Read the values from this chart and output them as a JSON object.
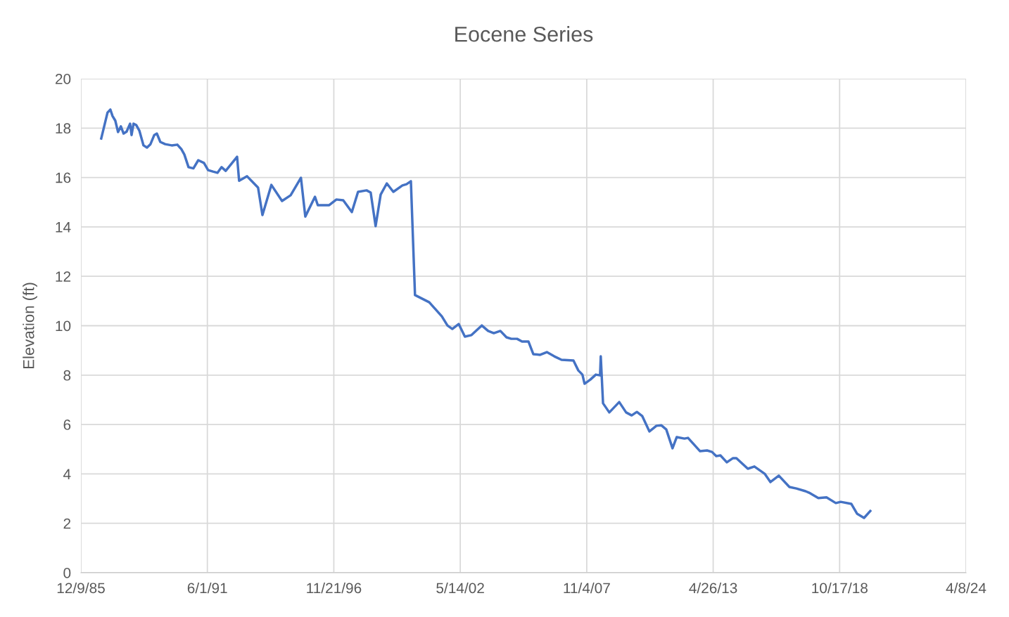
{
  "chart_data": {
    "type": "line",
    "title": "Eocene Series",
    "ylabel": "Elevation (ft)",
    "xlim": [
      "1985-12-09",
      "2024-04-08"
    ],
    "xticks": [
      {
        "value": "1985-12-09",
        "label": "12/9/85"
      },
      {
        "value": "1991-06-01",
        "label": "6/1/91"
      },
      {
        "value": "1996-11-21",
        "label": "11/21/96"
      },
      {
        "value": "2002-05-14",
        "label": "5/14/02"
      },
      {
        "value": "2007-11-04",
        "label": "11/4/07"
      },
      {
        "value": "2013-04-26",
        "label": "4/26/13"
      },
      {
        "value": "2018-10-17",
        "label": "10/17/18"
      },
      {
        "value": "2024-04-08",
        "label": "4/8/24"
      }
    ],
    "ylim": [
      0,
      20
    ],
    "yticks": [
      0,
      2,
      4,
      6,
      8,
      10,
      12,
      14,
      16,
      18,
      20
    ],
    "grid": true,
    "legend": false,
    "marker": "none",
    "line_style": "solid",
    "series": [
      {
        "color": "#4472c4",
        "x": [
          "1986-10-26",
          "1987-02-03",
          "1987-03-20",
          "1987-04-23",
          "1987-06-06",
          "1987-07-19",
          "1987-09-02",
          "1987-10-15",
          "1987-12-02",
          "1988-01-26",
          "1988-02-18",
          "1988-03-20",
          "1988-05-03",
          "1988-06-20",
          "1988-08-25",
          "1988-10-19",
          "1988-12-13",
          "1989-02-11",
          "1989-03-24",
          "1989-05-18",
          "1989-08-03",
          "1989-11-14",
          "1990-02-11",
          "1990-04-15",
          "1990-06-02",
          "1990-08-07",
          "1990-10-23",
          "1991-01-08",
          "1991-04-08",
          "1991-06-13",
          "1991-08-28",
          "1991-11-07",
          "1992-01-12",
          "1992-03-17",
          "1992-09-13",
          "1992-10-15",
          "1993-02-18",
          "1993-08-11",
          "1993-10-19",
          "1994-03-09",
          "1994-08-25",
          "1995-01-08",
          "1995-06-20",
          "1995-08-28",
          "1996-01-28",
          "1996-03-13",
          "1996-09-09",
          "1997-01-01",
          "1997-04-19",
          "1997-09-02",
          "1997-12-09",
          "1998-04-23",
          "1998-06-27",
          "1998-09-13",
          "1998-12-02",
          "1999-03-09",
          "1999-06-20",
          "1999-11-11",
          "2000-01-15",
          "2000-03-24",
          "2000-05-28",
          "2001-01-08",
          "2001-07-26",
          "2001-10-23",
          "2002-01-08",
          "2002-04-19",
          "2002-07-26",
          "2002-11-07",
          "2003-04-19",
          "2003-07-28",
          "2003-10-26",
          "2004-02-07",
          "2004-05-14",
          "2004-07-28",
          "2004-10-28",
          "2005-01-15",
          "2005-04-26",
          "2005-07-12",
          "2005-10-28",
          "2006-02-11",
          "2006-06-09",
          "2006-10-01",
          "2007-04-08",
          "2007-06-24",
          "2007-08-28",
          "2007-10-01",
          "2008-01-01",
          "2008-03-27",
          "2008-06-02",
          "2008-06-13",
          "2008-07-19",
          "2008-10-26",
          "2009-04-01",
          "2009-07-19",
          "2009-10-15",
          "2010-01-05",
          "2010-04-01",
          "2010-07-23",
          "2010-11-11",
          "2011-01-26",
          "2011-04-15",
          "2011-07-23",
          "2011-09-27",
          "2012-01-28",
          "2012-03-24",
          "2012-10-01",
          "2013-01-19",
          "2013-04-08",
          "2013-06-13",
          "2013-08-18",
          "2013-11-28",
          "2014-03-06",
          "2014-04-28",
          "2014-10-26",
          "2015-02-07",
          "2015-07-19",
          "2015-10-19",
          "2016-02-28",
          "2016-08-14",
          "2016-12-02",
          "2017-04-26",
          "2017-06-20",
          "2017-11-14",
          "2018-03-24",
          "2018-08-18",
          "2018-11-03",
          "2019-04-19",
          "2019-07-19",
          "2019-11-07",
          "2020-02-14"
        ],
        "values": [
          17.58,
          18.63,
          18.75,
          18.49,
          18.3,
          17.84,
          18.07,
          17.78,
          17.86,
          18.18,
          17.72,
          18.18,
          18.12,
          17.9,
          17.3,
          17.21,
          17.35,
          17.72,
          17.78,
          17.44,
          17.35,
          17.3,
          17.33,
          17.15,
          16.93,
          16.42,
          16.37,
          16.7,
          16.59,
          16.3,
          16.24,
          16.19,
          16.42,
          16.27,
          16.84,
          15.87,
          16.05,
          15.59,
          14.48,
          15.7,
          15.05,
          15.28,
          15.99,
          14.42,
          15.22,
          14.88,
          14.88,
          15.11,
          15.08,
          14.6,
          15.42,
          15.48,
          15.39,
          14.03,
          15.31,
          15.76,
          15.42,
          15.68,
          15.73,
          15.85,
          11.24,
          10.95,
          10.38,
          10.01,
          9.87,
          10.07,
          9.56,
          9.62,
          10.01,
          9.79,
          9.7,
          9.79,
          9.53,
          9.47,
          9.47,
          9.36,
          9.36,
          8.85,
          8.82,
          8.93,
          8.76,
          8.62,
          8.59,
          8.19,
          8.02,
          7.65,
          7.82,
          8.02,
          7.99,
          8.76,
          6.86,
          6.49,
          6.91,
          6.49,
          6.37,
          6.51,
          6.34,
          5.72,
          5.95,
          5.97,
          5.8,
          5.04,
          5.49,
          5.43,
          5.46,
          4.92,
          4.95,
          4.89,
          4.72,
          4.75,
          4.47,
          4.64,
          4.64,
          4.21,
          4.3,
          4.01,
          3.67,
          3.93,
          3.47,
          3.41,
          3.3,
          3.24,
          3.02,
          3.05,
          2.82,
          2.87,
          2.79,
          2.39,
          2.22,
          2.5
        ]
      }
    ]
  }
}
